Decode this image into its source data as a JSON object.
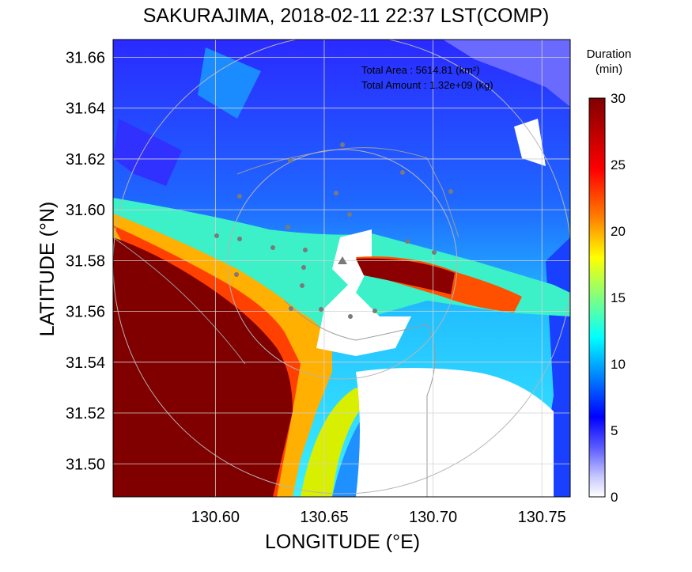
{
  "title": "SAKURAJIMA, 2018-02-11 22:37 LST(COMP)",
  "annotations": {
    "total_area_label": "Total Area   : 5614.81 (km²)",
    "total_amount_label": "Total Amount : 1.32e+09 (kg)"
  },
  "colorbar": {
    "title_line1": "Duration",
    "title_line2": "(min)",
    "range": [
      0,
      30
    ],
    "ticks": [
      "30",
      "25",
      "20",
      "15",
      "10",
      "5",
      "0"
    ]
  },
  "chart_data": {
    "type": "heatmap",
    "title": "SAKURAJIMA, 2018-02-11 22:37 LST(COMP)",
    "xlabel": "LONGITUDE (°E)",
    "ylabel": "LATITUDE (°N)",
    "xlim": [
      130.553,
      130.763
    ],
    "ylim": [
      31.487,
      31.667
    ],
    "x_ticks": [
      "130.60",
      "130.65",
      "130.70",
      "130.75"
    ],
    "y_ticks": [
      "31.66",
      "31.64",
      "31.62",
      "31.60",
      "31.58",
      "31.56",
      "31.54",
      "31.52",
      "31.50"
    ],
    "grid": true,
    "value_name": "Duration (min)",
    "value_range": [
      0,
      30
    ],
    "regions": [
      {
        "area": "south-west land mass",
        "duration_min": 30
      },
      {
        "area": "band east of crater (31.565-31.580 N)",
        "duration_min": 30
      },
      {
        "area": "plume edge south-west",
        "duration_min": 20
      },
      {
        "area": "north-east sky",
        "duration_min": 5
      }
    ]
  }
}
